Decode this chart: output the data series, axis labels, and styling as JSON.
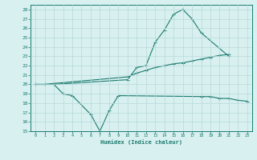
{
  "series1_x": [
    0,
    1,
    2,
    10,
    11,
    12,
    13,
    14,
    15,
    16,
    17,
    18,
    21
  ],
  "series1_y": [
    20,
    20,
    20,
    20.5,
    21.8,
    22.0,
    24.5,
    25.8,
    27.5,
    28.0,
    27.0,
    25.5,
    23.0
  ],
  "series2_x": [
    0,
    1,
    2,
    3,
    4,
    6,
    7,
    8,
    9,
    18,
    19,
    20,
    21,
    22,
    23
  ],
  "series2_y": [
    20,
    20,
    20,
    19,
    18.8,
    16.8,
    15.0,
    17.2,
    18.8,
    18.7,
    18.7,
    18.5,
    18.5,
    18.3,
    18.2
  ],
  "series3_x": [
    0,
    1,
    2,
    10,
    11,
    12,
    13,
    14,
    15,
    16,
    17,
    18,
    19,
    20,
    21
  ],
  "series3_y": [
    20,
    20,
    20.1,
    20.8,
    21.2,
    21.5,
    21.8,
    22.0,
    22.2,
    22.3,
    22.5,
    22.7,
    22.9,
    23.1,
    23.2
  ],
  "color": "#1a7a6e",
  "bg_color": "#d8f0f0",
  "grid_color": "#b8d8d8",
  "xlabel": "Humidex (Indice chaleur)",
  "ylim": [
    15,
    28.5
  ],
  "xlim": [
    -0.5,
    23.5
  ],
  "yticks": [
    15,
    16,
    17,
    18,
    19,
    20,
    21,
    22,
    23,
    24,
    25,
    26,
    27,
    28
  ],
  "xticks": [
    0,
    1,
    2,
    3,
    4,
    5,
    6,
    7,
    8,
    9,
    10,
    11,
    12,
    13,
    14,
    15,
    16,
    17,
    18,
    19,
    20,
    21,
    22,
    23
  ]
}
